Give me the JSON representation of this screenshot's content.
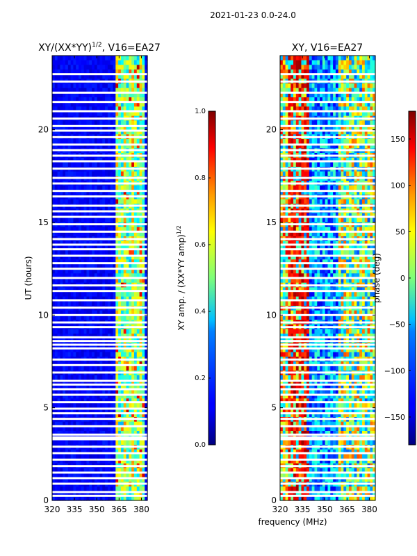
{
  "suptitle": "2021-01-23 0.0-24.0",
  "shared_xlabel": "frequency (MHz)",
  "colormap": "jet",
  "chart_data": [
    {
      "type": "heatmap",
      "title": "XY/(XX*YY)1/2, V16=EA27",
      "title_main": "XY/(XX*YY)",
      "title_sup": "1/2",
      "title_tail": ", V16=EA27",
      "ylabel": "UT (hours)",
      "xlim": [
        320,
        384
      ],
      "ylim": [
        0,
        24
      ],
      "xticks": [
        320,
        335,
        350,
        365,
        380
      ],
      "yticks": [
        0,
        5,
        10,
        15,
        20
      ],
      "quantity": "normalized XY amplitude",
      "colorbar": {
        "label_main": "XY amp. / (XX*YY amp)",
        "label_sup": "1/2",
        "ticks": [
          "0.0",
          "0.2",
          "0.4",
          "0.6",
          "0.8",
          "1.0"
        ],
        "range": [
          0,
          1
        ]
      }
    },
    {
      "type": "heatmap",
      "title": "XY, V16=EA27",
      "ylabel": "",
      "xlim": [
        320,
        384
      ],
      "ylim": [
        0,
        24
      ],
      "xticks": [
        320,
        335,
        350,
        365,
        380
      ],
      "yticks": [
        0,
        5,
        10,
        15,
        20
      ],
      "quantity": "XY phase",
      "colorbar": {
        "label_main": "phase (deg)",
        "ticks": [
          "−150",
          "−100",
          "−50",
          "0",
          "50",
          "100",
          "150"
        ],
        "tick_values": [
          -150,
          -100,
          -50,
          0,
          50,
          100,
          150
        ],
        "range": [
          -180,
          180
        ]
      }
    }
  ],
  "flagged_hours": [
    0.25,
    0.45,
    0.9,
    1.2,
    1.5,
    1.85,
    2.2,
    2.55,
    2.9,
    3.3,
    3.4,
    3.55,
    4.0,
    4.4,
    4.7,
    4.95,
    5.3,
    5.7,
    6.0,
    6.25,
    6.45,
    6.9,
    7.3,
    7.6,
    8.2,
    8.4,
    8.6,
    8.8,
    9.35,
    9.6,
    10.0,
    10.4,
    10.8,
    11.3,
    11.6,
    12.0,
    12.5,
    12.8,
    13.2,
    13.55,
    13.8,
    14.1,
    14.5,
    14.9,
    15.3,
    15.6,
    15.9,
    16.4,
    16.7,
    17.1,
    17.4,
    17.9,
    18.3,
    18.6,
    18.9,
    19.2,
    19.6,
    19.95,
    20.2,
    20.6,
    21.0,
    21.5,
    22.0,
    22.6,
    23.0
  ]
}
